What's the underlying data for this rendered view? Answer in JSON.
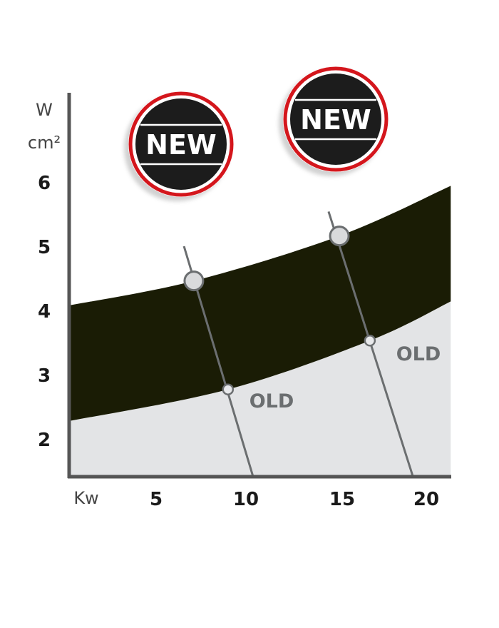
{
  "chart_data": {
    "type": "area",
    "title": "",
    "xlabel": "Kw",
    "ylabel_top": "W",
    "ylabel_bottom": "cm²",
    "x_ticks": [
      "5",
      "10",
      "15",
      "20"
    ],
    "x_tick_values": [
      5,
      10,
      15,
      20
    ],
    "y_ticks": [
      "2",
      "3",
      "4",
      "5",
      "6"
    ],
    "y_tick_values": [
      2,
      3,
      4,
      5,
      6
    ],
    "xlim": [
      0.2,
      21.4
    ],
    "ylim": [
      1.4,
      7.4
    ],
    "grid": false,
    "colors": {
      "band": "#1a1c05",
      "old_region": "#e3e4e6",
      "axis": "#555555",
      "badge_ring": "#d4151d",
      "badge_fill": "#1e1e1e"
    },
    "series": [
      {
        "name": "NEW",
        "role": "band upper edge",
        "x": [
          0.2,
          7.1,
          15.2,
          21.4
        ],
        "y": [
          4.08,
          4.46,
          5.16,
          5.94
        ]
      },
      {
        "name": "OLD",
        "role": "band lower edge",
        "x": [
          0.2,
          9.0,
          16.9,
          21.4
        ],
        "y": [
          2.28,
          2.77,
          3.53,
          4.14
        ]
      }
    ],
    "guide_lines": [
      {
        "from": [
          6.55,
          5.0
        ],
        "to": [
          10.4,
          1.41
        ]
      },
      {
        "from": [
          14.6,
          5.54
        ],
        "to": [
          19.3,
          1.41
        ]
      }
    ],
    "markers": [
      {
        "type": "new",
        "x": 7.1,
        "y": 4.46
      },
      {
        "type": "new",
        "x": 15.2,
        "y": 5.16
      },
      {
        "type": "old",
        "x": 9.0,
        "y": 2.77
      },
      {
        "type": "old",
        "x": 16.9,
        "y": 3.53
      }
    ],
    "annotations": [
      "OLD",
      "OLD"
    ],
    "badges": [
      "NEW",
      "NEW"
    ]
  }
}
